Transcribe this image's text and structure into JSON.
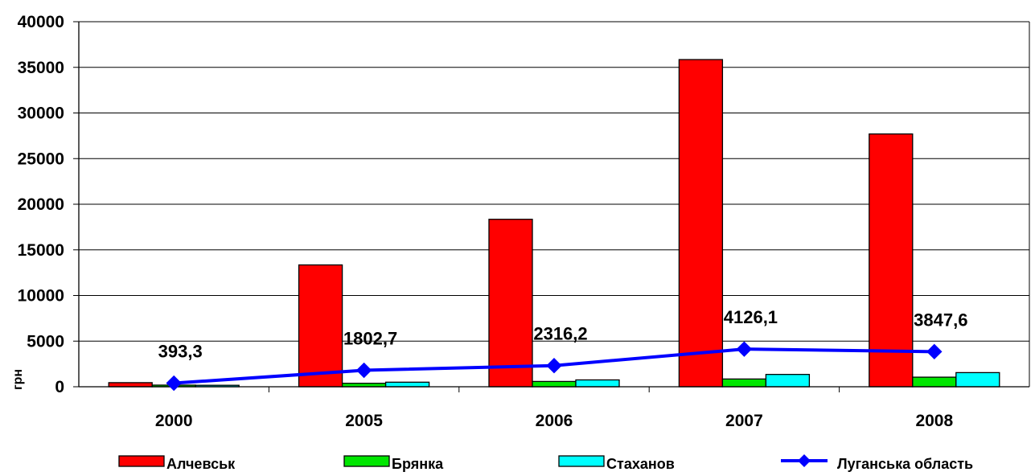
{
  "chart_data": {
    "type": "bar",
    "ylabel": "грн",
    "ylim": [
      0,
      40000
    ],
    "yticks": [
      0,
      5000,
      10000,
      15000,
      20000,
      25000,
      30000,
      35000,
      40000
    ],
    "grid": "horizontal",
    "legend_position": "bottom",
    "categories": [
      "2000",
      "2005",
      "2006",
      "2007",
      "2008"
    ],
    "series": [
      {
        "name": "Алчевськ",
        "kind": "bar",
        "color": "#ff0000",
        "values": [
          450,
          13350,
          18350,
          35850,
          27700
        ]
      },
      {
        "name": "Брянка",
        "kind": "bar",
        "color": "#00e600",
        "values": [
          180,
          380,
          580,
          850,
          1050
        ]
      },
      {
        "name": "Стаханов",
        "kind": "bar",
        "color": "#00ffff",
        "values": [
          160,
          500,
          750,
          1350,
          1550
        ]
      },
      {
        "name": "Луганська область",
        "kind": "line",
        "color": "#0000ff",
        "marker": "diamond",
        "values": [
          393.3,
          1802.7,
          2316.2,
          4126.1,
          3847.6
        ],
        "labels": [
          "393,3",
          "1802,7",
          "2316,2",
          "4126,1",
          "3847,6"
        ]
      }
    ]
  }
}
